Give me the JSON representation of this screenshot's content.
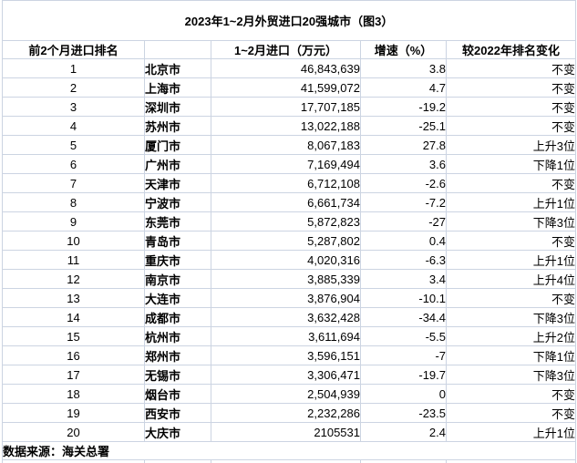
{
  "title": "2023年1~2月外贸进口20强城市（图3）",
  "chart_data": {
    "type": "table",
    "title": "2023年1~2月外贸进口20强城市（图3）",
    "columns": [
      "前2个月进口排名",
      "",
      "1~2月进口（万元）",
      "增速（%）",
      "较2022年排名变化"
    ],
    "rows": [
      [
        "1",
        "北京市",
        "46,843,639",
        "3.8",
        "不变"
      ],
      [
        "2",
        "上海市",
        "41,599,072",
        "4.7",
        "不变"
      ],
      [
        "3",
        "深圳市",
        "17,707,185",
        "-19.2",
        "不变"
      ],
      [
        "4",
        "苏州市",
        "13,022,188",
        "-25.1",
        "不变"
      ],
      [
        "5",
        "厦门市",
        "8,067,183",
        "27.8",
        "上升3位"
      ],
      [
        "6",
        "广州市",
        "7,169,494",
        "3.6",
        "下降1位"
      ],
      [
        "7",
        "天津市",
        "6,712,108",
        "-2.6",
        "不变"
      ],
      [
        "8",
        "宁波市",
        "6,661,734",
        "-7.2",
        "上升1位"
      ],
      [
        "9",
        "东莞市",
        "5,872,823",
        "-27",
        "下降3位"
      ],
      [
        "10",
        "青岛市",
        "5,287,802",
        "0.4",
        "不变"
      ],
      [
        "11",
        "重庆市",
        "4,020,316",
        "-6.3",
        "上升1位"
      ],
      [
        "12",
        "南京市",
        "3,885,339",
        "3.4",
        "上升4位"
      ],
      [
        "13",
        "大连市",
        "3,876,904",
        "-10.1",
        "不变"
      ],
      [
        "14",
        "成都市",
        "3,632,428",
        "-34.4",
        "下降3位"
      ],
      [
        "15",
        "杭州市",
        "3,611,694",
        "-5.5",
        "上升2位"
      ],
      [
        "16",
        "郑州市",
        "3,596,151",
        "-7",
        "下降1位"
      ],
      [
        "17",
        "无锡市",
        "3,306,471",
        "-19.7",
        "下降3位"
      ],
      [
        "18",
        "烟台市",
        "2,504,939",
        "0",
        "不变"
      ],
      [
        "19",
        "西安市",
        "2,232,286",
        "-23.5",
        "不变"
      ],
      [
        "20",
        "大庆市",
        "2105531",
        "2.4",
        "上升1位"
      ]
    ],
    "source_note": "数据来源：海关总署"
  },
  "colors": {
    "gridline": "#ccd4e2",
    "text": "#000000",
    "background": "#ffffff"
  }
}
